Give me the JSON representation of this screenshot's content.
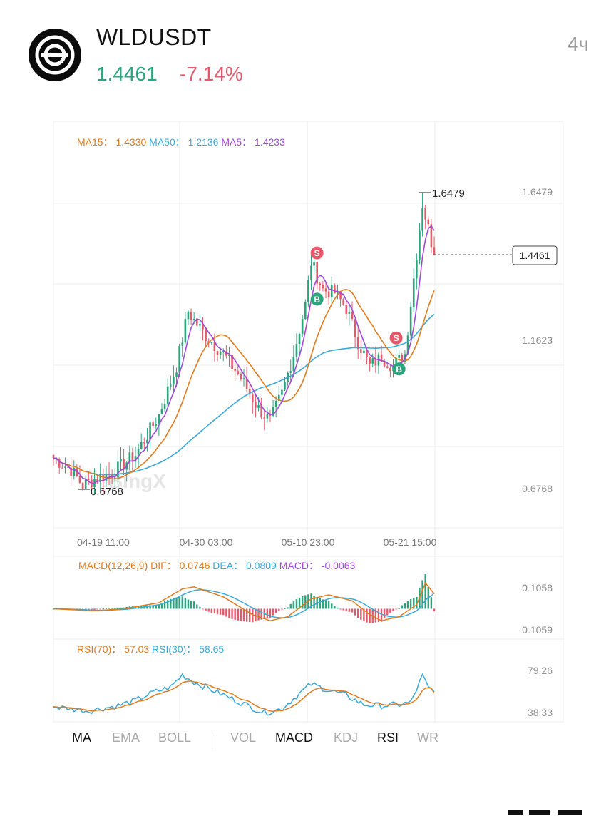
{
  "header": {
    "symbol": "WLDUSDT",
    "price": "1.4461",
    "change": "-7.14%",
    "interval": "4ч",
    "logo_icon": "worldcoin-logo-icon"
  },
  "colors": {
    "up": "#2aa57b",
    "down": "#e45a6a",
    "ma15": "#e07b1e",
    "ma50": "#3aa9d8",
    "ma5": "#a04ad8"
  },
  "watermark": "BingX",
  "main_chart": {
    "legend": [
      {
        "label": "MA15： 1.4330",
        "color": "#e07b1e"
      },
      {
        "label": "MA50： 1.2136",
        "color": "#3aa9d8"
      },
      {
        "label": "MA5： 1.4233",
        "color": "#a04ad8"
      }
    ],
    "y_labels": [
      "1.6479",
      "1.1623",
      "0.6768"
    ],
    "current_price_label": "1.4461",
    "high_label": "1.6479",
    "low_label": "0.6768",
    "x_labels": [
      "04-19 11:00",
      "04-30 03:00",
      "05-10 23:00",
      "05-21 15:00"
    ],
    "signals": [
      {
        "type": "S",
        "index": 90
      },
      {
        "type": "B",
        "index": 90
      },
      {
        "type": "S",
        "index": 117
      },
      {
        "type": "B",
        "index": 118
      }
    ]
  },
  "macd": {
    "legend": [
      {
        "label": "MACD(12,26,9)",
        "color": "#e07b1e"
      },
      {
        "label": "DIF： 0.0746",
        "color": "#e07b1e"
      },
      {
        "label": "DEA： 0.0809",
        "color": "#3aa9d8"
      },
      {
        "label": "MACD： -0.0063",
        "color": "#a04ad8"
      }
    ],
    "y_labels": [
      "0.1058",
      "-0.1059"
    ]
  },
  "rsi": {
    "legend": [
      {
        "label": "RSI(70)： 57.03",
        "color": "#e07b1e"
      },
      {
        "label": "RSI(30)： 58.65",
        "color": "#3aa9d8"
      }
    ],
    "y_labels": [
      "79.26",
      "38.33"
    ]
  },
  "tabs": [
    {
      "label": "MA",
      "active": true
    },
    {
      "label": "EMA",
      "active": false
    },
    {
      "label": "BOLL",
      "active": false
    },
    {
      "label": "VOL",
      "active": false
    },
    {
      "label": "MACD",
      "active": true
    },
    {
      "label": "KDJ",
      "active": false
    },
    {
      "label": "RSI",
      "active": true
    },
    {
      "label": "WR",
      "active": false
    }
  ],
  "chart_data": {
    "type": "candlestick",
    "symbol": "WLDUSDT",
    "timeframe": "4ч",
    "x_ticks": [
      "04-19 11:00",
      "04-30 03:00",
      "05-10 23:00",
      "05-21 15:00"
    ],
    "y_range": [
      0.43,
      1.89
    ],
    "y_ticks": [
      1.6479,
      1.1623,
      0.6768
    ],
    "high": 1.6479,
    "low": 0.6768,
    "last": 1.4461,
    "close_path": [
      [
        0,
        0.78
      ],
      [
        6,
        0.74
      ],
      [
        10,
        0.69
      ],
      [
        14,
        0.71
      ],
      [
        20,
        0.73
      ],
      [
        28,
        0.79
      ],
      [
        36,
        0.92
      ],
      [
        42,
        1.08
      ],
      [
        46,
        1.26
      ],
      [
        48,
        1.23
      ],
      [
        52,
        1.18
      ],
      [
        58,
        1.12
      ],
      [
        64,
        1.04
      ],
      [
        70,
        0.94
      ],
      [
        74,
        0.9
      ],
      [
        78,
        0.99
      ],
      [
        82,
        1.12
      ],
      [
        86,
        1.28
      ],
      [
        88,
        1.42
      ],
      [
        92,
        1.33
      ],
      [
        96,
        1.32
      ],
      [
        100,
        1.27
      ],
      [
        104,
        1.16
      ],
      [
        108,
        1.08
      ],
      [
        112,
        1.11
      ],
      [
        116,
        1.08
      ],
      [
        120,
        1.12
      ],
      [
        124,
        1.45
      ],
      [
        126,
        1.61
      ],
      [
        128,
        1.53
      ],
      [
        130,
        1.4461
      ]
    ],
    "ma_values": {
      "MA15": 1.433,
      "MA50": 1.2136,
      "MA5": 1.4233
    },
    "macd_values": {
      "DIF": 0.0746,
      "DEA": 0.0809,
      "MACD": -0.0063
    },
    "macd_y_ticks": [
      0.1058,
      -0.1059
    ],
    "macd_dif_path": [
      [
        0,
        0.0
      ],
      [
        14,
        -0.01
      ],
      [
        24,
        0.0
      ],
      [
        36,
        0.03
      ],
      [
        44,
        0.1
      ],
      [
        48,
        0.11
      ],
      [
        58,
        0.06
      ],
      [
        68,
        -0.03
      ],
      [
        74,
        -0.06
      ],
      [
        80,
        -0.04
      ],
      [
        88,
        0.05
      ],
      [
        94,
        0.07
      ],
      [
        102,
        0.04
      ],
      [
        108,
        -0.03
      ],
      [
        112,
        -0.06
      ],
      [
        118,
        -0.04
      ],
      [
        124,
        0.02
      ],
      [
        127,
        0.13
      ],
      [
        130,
        0.0746
      ]
    ],
    "rsi_values": {
      "RSI(70)": 57.03,
      "RSI(30)": 58.65
    },
    "rsi_y_ticks": [
      79.26,
      38.33
    ],
    "rsi30_path": [
      [
        0,
        44
      ],
      [
        12,
        40
      ],
      [
        22,
        45
      ],
      [
        28,
        50
      ],
      [
        34,
        58
      ],
      [
        40,
        63
      ],
      [
        44,
        75
      ],
      [
        48,
        68
      ],
      [
        56,
        58
      ],
      [
        64,
        48
      ],
      [
        72,
        38
      ],
      [
        78,
        42
      ],
      [
        84,
        57
      ],
      [
        88,
        66
      ],
      [
        94,
        60
      ],
      [
        100,
        55
      ],
      [
        106,
        46
      ],
      [
        112,
        45
      ],
      [
        118,
        46
      ],
      [
        122,
        48
      ],
      [
        126,
        74
      ],
      [
        128,
        62
      ],
      [
        130,
        58.65
      ]
    ]
  }
}
